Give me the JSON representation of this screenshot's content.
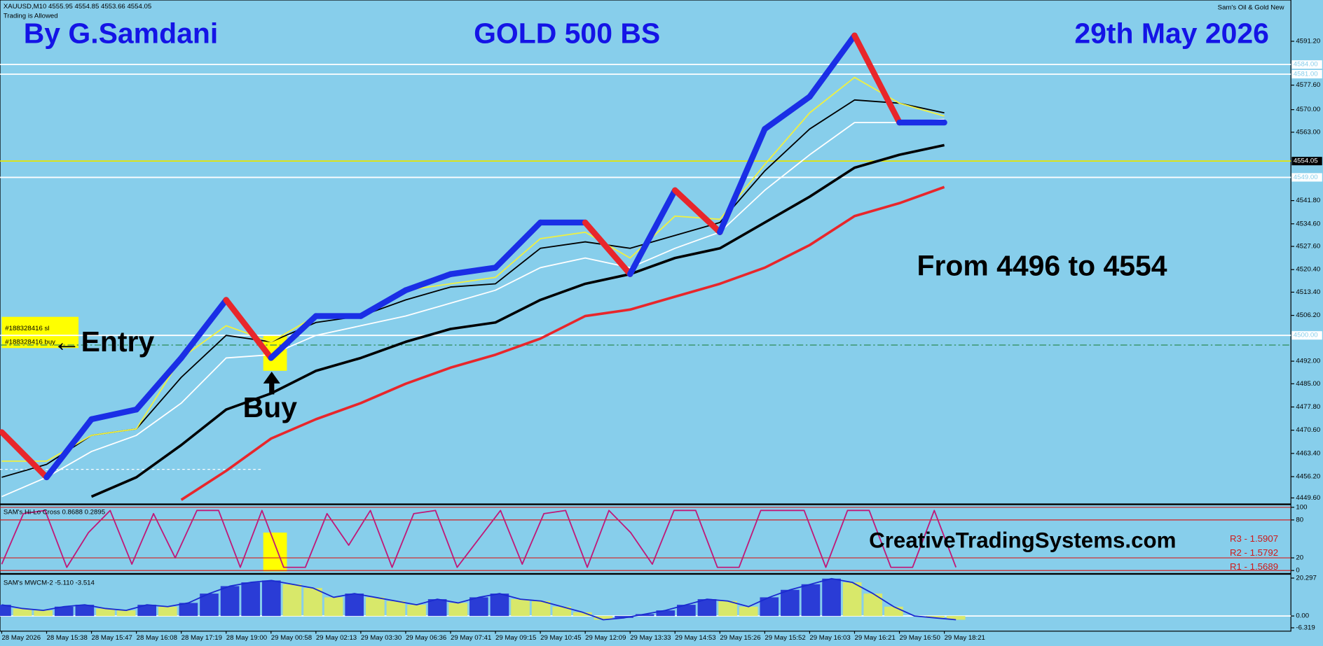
{
  "header": {
    "left": "By G.Samdani",
    "center": "GOLD 500 BS",
    "right": "29th May 2026",
    "symbol_info": "XAUUSD,M10  4555.95 4554.85 4553.66 4554.05",
    "status": "Trading is Allowed",
    "indicator": "Sam's Oil & Gold New"
  },
  "annotations": {
    "trade_sl": "#188328416 sl",
    "trade_buy": "#188328416 buy",
    "entry": "←Entry",
    "buy": "Buy",
    "target": "From 4496 to 4554",
    "website": "CreativeTradingSystems.com"
  },
  "pivots": [
    "R3 - 1.5907",
    "R2 - 1.5792",
    "R1 - 1.5689"
  ],
  "chart_data": [
    {
      "type": "line",
      "categories": [
        "28 May 2026",
        "28 May 15:38",
        "28 May 15:47",
        "28 May 16:08",
        "28 May 17:19",
        "28 May 19:00",
        "29 May 00:58",
        "29 May 02:13",
        "29 May 03:30",
        "29 May 06:36",
        "29 May 07:41",
        "29 May 09:15",
        "29 May 10:45",
        "29 May 12:09",
        "29 May 13:33",
        "29 May 14:53",
        "29 May 15:26",
        "29 May 15:52",
        "29 May 16:03",
        "29 May 16:21",
        "29 May 16:50",
        "29 May 18:21"
      ],
      "ylim": [
        4448,
        4604
      ],
      "yticks": [
        {
          "value": 4591.2,
          "label": "4591.20"
        },
        {
          "value": 4577.6,
          "label": "4577.60"
        },
        {
          "value": 4570,
          "label": "4570.00"
        },
        {
          "value": 4563,
          "label": "4563.00"
        },
        {
          "value": 4541.8,
          "label": "4541.80"
        },
        {
          "value": 4534.6,
          "label": "4534.60"
        },
        {
          "value": 4527.6,
          "label": "4527.60"
        },
        {
          "value": 4520.4,
          "label": "4520.40"
        },
        {
          "value": 4513.4,
          "label": "4513.40"
        },
        {
          "value": 4506.2,
          "label": "4506.20"
        },
        {
          "value": 4492,
          "label": "4492.00"
        },
        {
          "value": 4485,
          "label": "4485.00"
        },
        {
          "value": 4477.8,
          "label": "4477.80"
        },
        {
          "value": 4470.6,
          "label": "4470.60"
        },
        {
          "value": 4463.4,
          "label": "4463.40"
        },
        {
          "value": 4456.2,
          "label": "4456.20"
        },
        {
          "value": 4449.6,
          "label": "4449.60"
        }
      ],
      "levels": [
        {
          "value": 4584,
          "label": "4584.00",
          "color": "#ffffff"
        },
        {
          "value": 4581,
          "label": "4581.00",
          "color": "#ffffff"
        },
        {
          "value": 4549,
          "label": "4549.00",
          "color": "#ffffff"
        },
        {
          "value": 4500,
          "label": "4500.00",
          "color": "#ffffff"
        },
        {
          "value": 4554.05,
          "label": "4554.05",
          "color": "#e6e600"
        },
        {
          "value": 4497,
          "color": "#2e8b57"
        }
      ],
      "up_color": "#1a2ee6",
      "down_color": "#e8262b",
      "series": [
        {
          "color": "#e8262b",
          "width": 3,
          "values": [
            null,
            null,
            null,
            null,
            4449,
            4458,
            4468,
            4474,
            4479,
            4485,
            4490,
            4494,
            4499,
            4506,
            4508,
            4512,
            4516,
            4521,
            4528,
            4537,
            4541,
            4546
          ]
        },
        {
          "color": "#000000",
          "width": 3,
          "values": [
            null,
            null,
            4450,
            4456,
            4466,
            4477,
            4482,
            4489,
            4493,
            4498,
            4502,
            4504,
            4511,
            4516,
            4519,
            4524,
            4527,
            4535,
            4543,
            4552,
            4556,
            4559
          ]
        },
        {
          "color": "#ffffff",
          "width": 1.5,
          "values": [
            4450,
            4456,
            4464,
            4469,
            4479,
            4493,
            4494,
            4500,
            4503,
            4506,
            4510,
            4514,
            4521,
            4524,
            4521,
            4527,
            4532,
            4545,
            4556,
            4566,
            4566,
            4567
          ]
        },
        {
          "color": "#000000",
          "width": 1.5,
          "values": [
            4456,
            4460,
            4469,
            4471,
            4487,
            4500,
            4498,
            4504,
            4506,
            4511,
            4515,
            4516,
            4527,
            4529,
            4527,
            4531,
            4535,
            4551,
            4564,
            4573,
            4572,
            4569
          ]
        },
        {
          "color": "#f0f040",
          "width": 1.5,
          "values": [
            4461,
            4461,
            4469,
            4471,
            4493,
            4503,
            4498,
            4506,
            4506,
            4514,
            4516,
            4518,
            4530,
            4532,
            4524,
            4537,
            4536,
            4553,
            4569,
            4580,
            4572,
            4568
          ]
        },
        {
          "style": "renko",
          "width": 7,
          "values": [
            4470,
            4456,
            4474,
            4477,
            4493,
            4511,
            4493,
            4506,
            4506,
            4514,
            4519,
            4521,
            4535,
            4535,
            4519,
            4545,
            4532,
            4564,
            4574,
            4593,
            4566,
            4566
          ]
        }
      ]
    },
    {
      "type": "line",
      "title": "SAM's Hi-Lo Cross 0.8688 0.2895",
      "ylim": [
        0,
        100
      ],
      "yticks": [
        0,
        20,
        80,
        100
      ],
      "grid_color": "#d42020",
      "series": [
        {
          "color": "#c01878",
          "values": [
            10,
            90,
            95,
            5,
            60,
            95,
            10,
            90,
            20,
            95,
            95,
            5,
            95,
            5,
            5,
            90,
            40,
            95,
            5,
            90,
            95,
            5,
            50,
            95,
            10,
            90,
            95,
            5,
            95,
            60,
            10,
            95,
            95,
            5,
            5,
            95,
            95,
            95,
            5,
            95,
            95,
            5,
            5,
            95,
            5
          ]
        }
      ]
    },
    {
      "type": "bar",
      "title": "SAM's MWCM-2 -5.110 -3.514",
      "ylim": [
        -6.319,
        20.297
      ],
      "yticks": [
        {
          "value": -6.319,
          "label": "-6.319"
        },
        {
          "value": 0,
          "label": "0.00"
        },
        {
          "value": 20.297,
          "label": "20.297"
        }
      ],
      "rising_color": "#2a3cd6",
      "falling_color": "#d8e86a",
      "line_color": "#1a2ad0",
      "values": [
        6,
        4,
        3,
        5,
        6,
        4,
        3,
        6,
        5,
        7,
        12,
        16,
        18,
        19,
        17,
        15,
        10,
        12,
        10,
        8,
        6,
        9,
        7,
        10,
        12,
        9,
        8,
        5,
        2,
        -2,
        -1,
        1,
        3,
        6,
        9,
        8,
        5,
        10,
        14,
        17,
        20,
        18,
        12,
        5,
        0,
        -1,
        -2
      ]
    }
  ]
}
